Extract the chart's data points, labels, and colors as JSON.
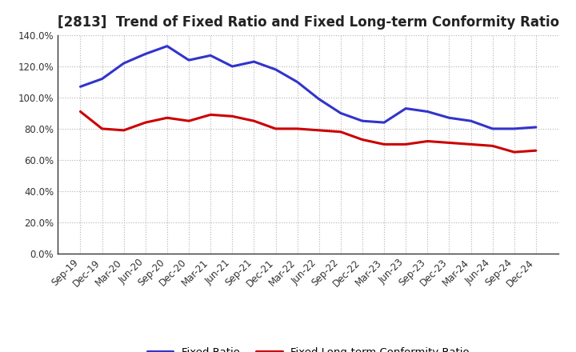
{
  "title": "[2813]  Trend of Fixed Ratio and Fixed Long-term Conformity Ratio",
  "labels": [
    "Sep-19",
    "Dec-19",
    "Mar-20",
    "Jun-20",
    "Sep-20",
    "Dec-20",
    "Mar-21",
    "Jun-21",
    "Sep-21",
    "Dec-21",
    "Mar-22",
    "Jun-22",
    "Sep-22",
    "Dec-22",
    "Mar-23",
    "Jun-23",
    "Sep-23",
    "Dec-23",
    "Mar-24",
    "Jun-24",
    "Sep-24",
    "Dec-24"
  ],
  "fixed_ratio": [
    107,
    112,
    122,
    128,
    133,
    124,
    127,
    120,
    123,
    118,
    110,
    99,
    90,
    85,
    84,
    93,
    91,
    87,
    85,
    80,
    80,
    81
  ],
  "fixed_lt_ratio": [
    91,
    80,
    79,
    84,
    87,
    85,
    89,
    88,
    85,
    80,
    80,
    79,
    78,
    73,
    70,
    70,
    72,
    71,
    70,
    69,
    65,
    66
  ],
  "fixed_ratio_color": "#3333cc",
  "fixed_lt_ratio_color": "#cc0000",
  "ylim": [
    0,
    140
  ],
  "yticks": [
    0,
    20,
    40,
    60,
    80,
    100,
    120,
    140
  ],
  "background_color": "#ffffff",
  "plot_bg_color": "#ffffff",
  "grid_color": "#aaaaaa",
  "legend_fixed": "Fixed Ratio",
  "legend_fixed_lt": "Fixed Long-term Conformity Ratio",
  "title_fontsize": 12,
  "tick_fontsize": 8.5,
  "legend_fontsize": 9.5
}
